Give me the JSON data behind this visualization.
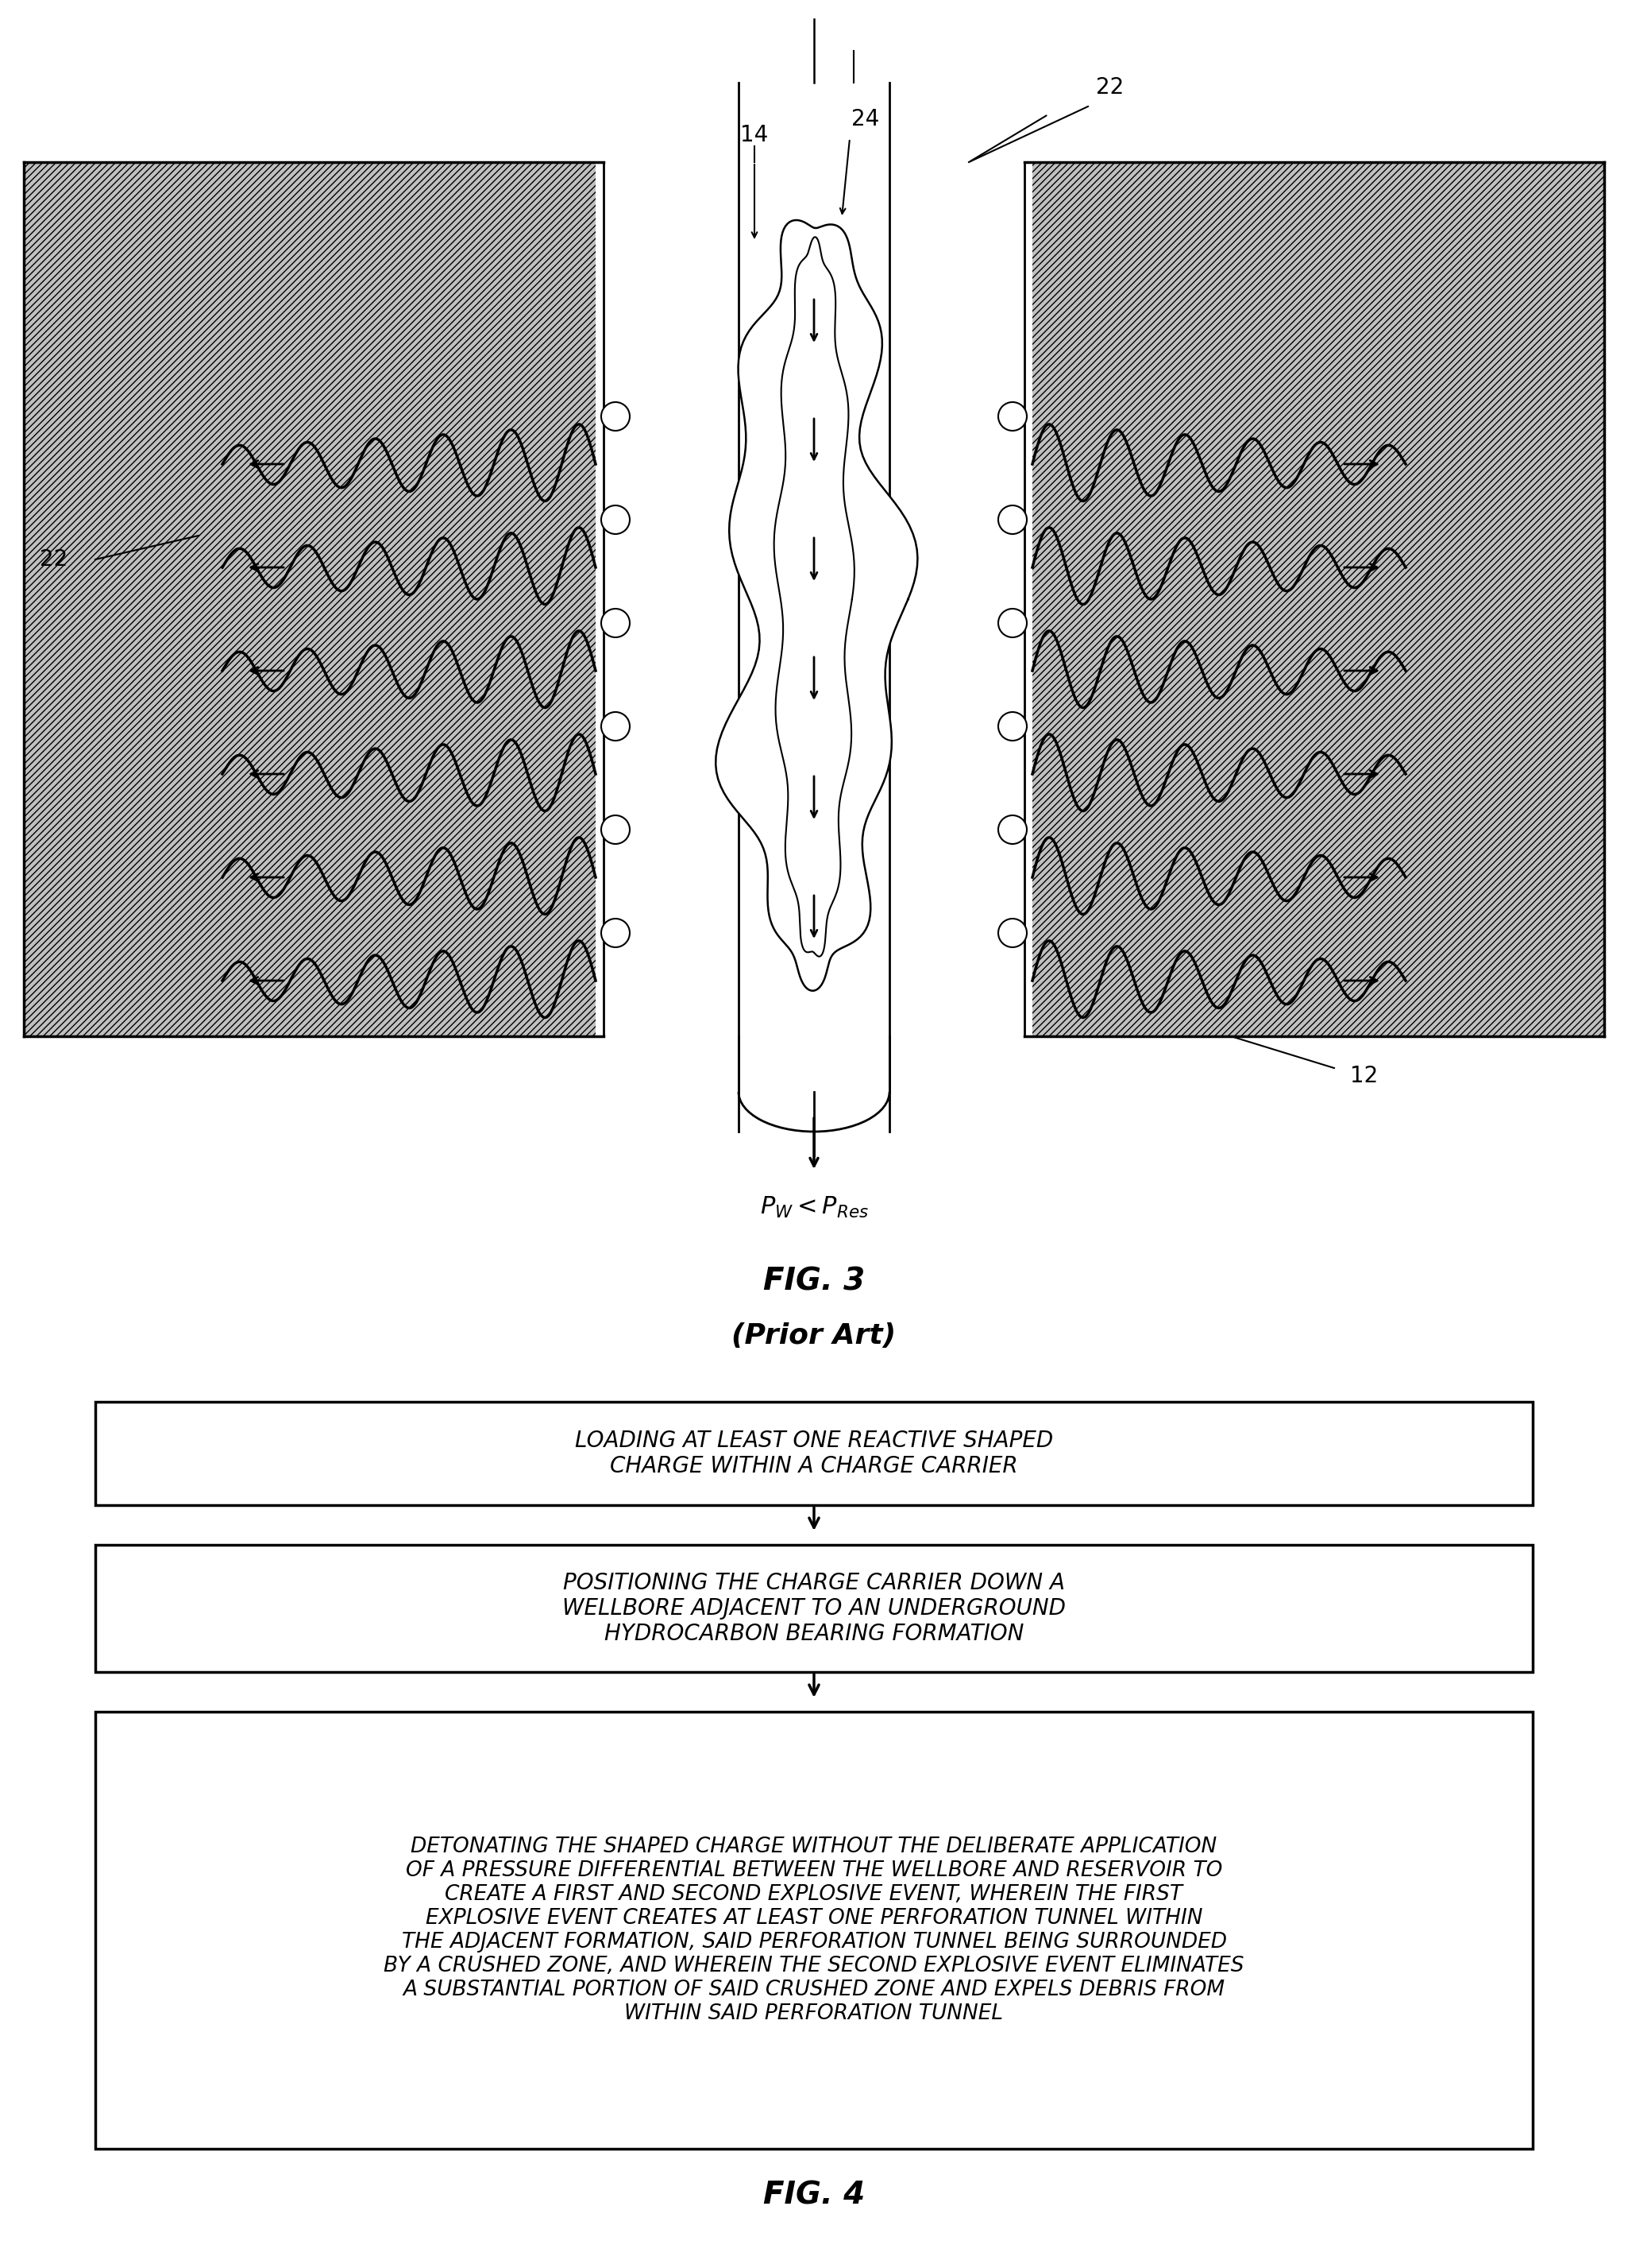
{
  "fig_width": 20.5,
  "fig_height": 28.54,
  "bg_color": "#ffffff",
  "fig3_title": "FIG. 3",
  "fig3_subtitle": "(Prior Art)",
  "fig4_title": "FIG. 4",
  "label_12": "12",
  "label_14": "14",
  "label_22a": "22",
  "label_22b": "22",
  "label_24": "24",
  "box1_text": "LOADING AT LEAST ONE REACTIVE SHAPED\nCHARGE WITHIN A CHARGE CARRIER",
  "box2_text": "POSITIONING THE CHARGE CARRIER DOWN A\nWELLBORE ADJACENT TO AN UNDERGROUND\nHYDROCARBON BEARING FORMATION",
  "box3_text": "DETONATING THE SHAPED CHARGE WITHOUT THE DELIBERATE APPLICATION\nOF A PRESSURE DIFFERENTIAL BETWEEN THE WELLBORE AND RESERVOIR TO\nCREATE A FIRST AND SECOND EXPLOSIVE EVENT, WHEREIN THE FIRST\nEXPLOSIVE EVENT CREATES AT LEAST ONE PERFORATION TUNNEL WITHIN\nTHE ADJACENT FORMATION, SAID PERFORATION TUNNEL BEING SURROUNDED\nBY A CRUSHED ZONE, AND WHEREIN THE SECOND EXPLOSIVE EVENT ELIMINATES\nA SUBSTANTIAL PORTION OF SAID CRUSHED ZONE AND EXPELS DEBRIS FROM\nWITHIN SAID PERFORATION TUNNEL",
  "hatch_color": "#aaaaaa",
  "line_color": "#000000"
}
